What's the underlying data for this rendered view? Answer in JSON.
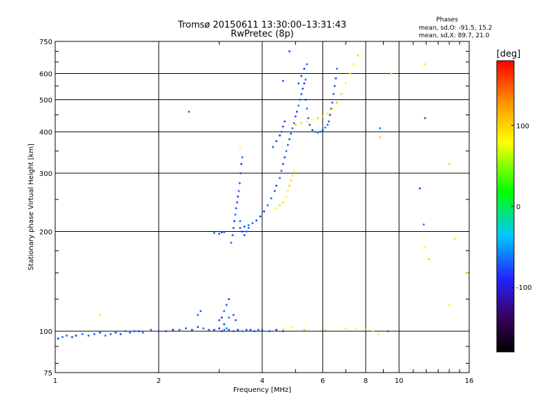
{
  "chart_data": {
    "type": "scatter",
    "title": "Tromsø 20150611 13:30:00–13:31:43",
    "subtitle": "RwPretec (8p)",
    "xlabel": "Frequency [MHz]",
    "ylabel": "Stationary phase Virtual Height [km]",
    "x_scale": "log",
    "y_scale": "log",
    "xlim": [
      1,
      16
    ],
    "ylim": [
      75,
      750
    ],
    "x_ticks": [
      1,
      2,
      4,
      6,
      8,
      10,
      16
    ],
    "x_tick_labels": [
      "1",
      "2",
      "4",
      "6",
      "8",
      "10",
      "16"
    ],
    "y_ticks": [
      75,
      100,
      200,
      300,
      400,
      500,
      600,
      750
    ],
    "y_tick_labels": [
      "75",
      "100",
      "200",
      "300",
      "400",
      "500",
      "600",
      "750"
    ],
    "grid": true,
    "phase_stats": {
      "heading": "Phases",
      "line_o": "mean, sd,O: -91.5, 15.2",
      "line_x": "mean, sd,X: 89.7, 21.0"
    },
    "colorbar": {
      "label": "[deg]",
      "range": [
        -180,
        180
      ],
      "ticks": [
        100,
        0,
        -100
      ],
      "tick_labels": [
        "100",
        "0",
        "-100"
      ]
    },
    "series": [
      {
        "mode": "O",
        "phase_deg": -95,
        "points": [
          [
            1.02,
            95
          ],
          [
            1.05,
            96
          ],
          [
            1.08,
            97
          ],
          [
            1.12,
            96
          ],
          [
            1.15,
            97
          ],
          [
            1.2,
            98
          ],
          [
            1.25,
            97
          ],
          [
            1.3,
            98
          ],
          [
            1.35,
            99
          ],
          [
            1.4,
            97
          ],
          [
            1.45,
            98
          ],
          [
            1.5,
            99
          ],
          [
            1.55,
            98
          ],
          [
            1.6,
            100
          ],
          [
            1.65,
            99
          ],
          [
            1.7,
            100
          ],
          [
            1.75,
            100
          ],
          [
            1.8,
            99
          ],
          [
            1.9,
            101
          ],
          [
            2.0,
            100
          ],
          [
            2.1,
            100
          ],
          [
            2.2,
            101
          ],
          [
            2.3,
            101
          ],
          [
            2.4,
            102
          ],
          [
            2.5,
            101
          ],
          [
            2.6,
            103
          ],
          [
            2.7,
            102
          ],
          [
            2.8,
            101
          ],
          [
            2.9,
            101
          ],
          [
            3.0,
            102
          ],
          [
            3.1,
            101
          ],
          [
            3.2,
            101
          ],
          [
            3.3,
            100
          ],
          [
            3.4,
            101
          ],
          [
            3.5,
            100
          ],
          [
            3.6,
            101
          ],
          [
            3.7,
            101
          ],
          [
            3.8,
            100
          ],
          [
            3.9,
            101
          ],
          [
            4.0,
            101
          ],
          [
            4.2,
            100
          ],
          [
            4.4,
            101
          ],
          [
            4.6,
            100
          ],
          [
            2.6,
            112
          ],
          [
            2.65,
            115
          ],
          [
            3.0,
            108
          ],
          [
            3.05,
            110
          ],
          [
            3.1,
            115
          ],
          [
            3.15,
            120
          ],
          [
            3.2,
            125
          ],
          [
            3.1,
            105
          ],
          [
            3.2,
            110
          ],
          [
            3.3,
            112
          ],
          [
            3.35,
            108
          ],
          [
            3.05,
            100
          ],
          [
            3.15,
            102
          ],
          [
            2.9,
            198
          ],
          [
            3.0,
            197
          ],
          [
            3.05,
            199
          ],
          [
            3.1,
            199
          ],
          [
            3.25,
            185
          ],
          [
            3.28,
            195
          ],
          [
            3.3,
            205
          ],
          [
            3.32,
            215
          ],
          [
            3.34,
            225
          ],
          [
            3.36,
            235
          ],
          [
            3.38,
            245
          ],
          [
            3.4,
            255
          ],
          [
            3.42,
            265
          ],
          [
            3.44,
            280
          ],
          [
            3.46,
            300
          ],
          [
            3.48,
            320
          ],
          [
            3.5,
            335
          ],
          [
            3.45,
            215
          ],
          [
            3.5,
            200
          ],
          [
            3.55,
            195
          ],
          [
            3.6,
            200
          ],
          [
            3.65,
            205
          ],
          [
            3.45,
            205
          ],
          [
            3.55,
            207
          ],
          [
            3.65,
            209
          ],
          [
            3.75,
            212
          ],
          [
            3.85,
            216
          ],
          [
            3.95,
            222
          ],
          [
            4.05,
            230
          ],
          [
            4.15,
            240
          ],
          [
            4.25,
            252
          ],
          [
            4.35,
            265
          ],
          [
            4.4,
            275
          ],
          [
            4.5,
            290
          ],
          [
            4.55,
            305
          ],
          [
            4.6,
            320
          ],
          [
            4.65,
            335
          ],
          [
            4.7,
            350
          ],
          [
            4.75,
            365
          ],
          [
            4.8,
            380
          ],
          [
            4.85,
            395
          ],
          [
            4.9,
            410
          ],
          [
            4.95,
            425
          ],
          [
            5.0,
            445
          ],
          [
            5.05,
            460
          ],
          [
            5.1,
            480
          ],
          [
            5.15,
            500
          ],
          [
            5.2,
            520
          ],
          [
            5.25,
            540
          ],
          [
            5.3,
            560
          ],
          [
            5.35,
            575
          ],
          [
            4.3,
            360
          ],
          [
            4.4,
            375
          ],
          [
            4.5,
            390
          ],
          [
            4.55,
            400
          ],
          [
            4.6,
            415
          ],
          [
            4.65,
            430
          ],
          [
            5.35,
            500
          ],
          [
            5.4,
            470
          ],
          [
            5.45,
            440
          ],
          [
            5.5,
            420
          ],
          [
            5.6,
            405
          ],
          [
            5.7,
            400
          ],
          [
            5.8,
            398
          ],
          [
            5.9,
            400
          ],
          [
            6.0,
            405
          ],
          [
            6.1,
            412
          ],
          [
            6.2,
            420
          ],
          [
            5.1,
            560
          ],
          [
            5.2,
            590
          ],
          [
            5.3,
            620
          ],
          [
            5.4,
            640
          ],
          [
            6.25,
            430
          ],
          [
            6.3,
            450
          ],
          [
            6.35,
            470
          ],
          [
            6.4,
            490
          ],
          [
            6.45,
            520
          ],
          [
            6.5,
            550
          ],
          [
            6.55,
            580
          ],
          [
            6.6,
            620
          ],
          [
            2.45,
            460
          ],
          [
            4.6,
            570
          ],
          [
            4.8,
            700
          ],
          [
            8.8,
            410
          ],
          [
            9.3,
            100
          ],
          [
            11.9,
            440
          ],
          [
            11.5,
            270
          ],
          [
            11.8,
            210
          ]
        ]
      },
      {
        "mode": "X",
        "phase_deg": 90,
        "points": [
          [
            4.4,
            235
          ],
          [
            4.5,
            240
          ],
          [
            4.6,
            245
          ],
          [
            4.7,
            255
          ],
          [
            4.75,
            265
          ],
          [
            4.8,
            275
          ],
          [
            4.85,
            285
          ],
          [
            4.9,
            295
          ],
          [
            4.95,
            305
          ],
          [
            5.0,
            420
          ],
          [
            5.2,
            425
          ],
          [
            5.4,
            430
          ],
          [
            5.6,
            435
          ],
          [
            5.8,
            440
          ],
          [
            6.0,
            445
          ],
          [
            6.2,
            455
          ],
          [
            6.4,
            470
          ],
          [
            6.6,
            490
          ],
          [
            6.8,
            520
          ],
          [
            7.0,
            560
          ],
          [
            7.2,
            600
          ],
          [
            7.4,
            640
          ],
          [
            7.6,
            680
          ],
          [
            1.35,
            112
          ],
          [
            4.6,
            102
          ],
          [
            4.9,
            103
          ],
          [
            5.3,
            101
          ],
          [
            6.1,
            101
          ],
          [
            7.0,
            102
          ],
          [
            7.5,
            102
          ],
          [
            8.0,
            101
          ],
          [
            8.4,
            100
          ],
          [
            8.7,
            98
          ],
          [
            3.45,
            360
          ],
          [
            8.8,
            385
          ],
          [
            9.5,
            600
          ],
          [
            11.9,
            640
          ],
          [
            11.9,
            180
          ],
          [
            12.2,
            165
          ],
          [
            14.0,
            320
          ],
          [
            14.5,
            190
          ],
          [
            14.0,
            120
          ],
          [
            15.8,
            150
          ]
        ]
      }
    ]
  }
}
